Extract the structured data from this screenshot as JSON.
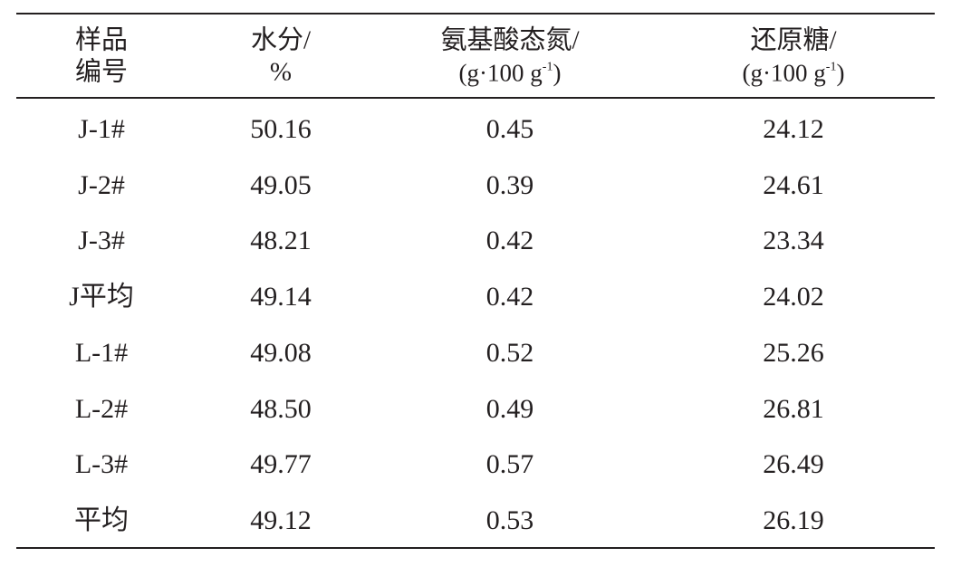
{
  "table": {
    "header": [
      {
        "lines": [
          "样品",
          "编号"
        ]
      },
      {
        "lines": [
          "水分/",
          "%"
        ]
      },
      {
        "lines": [
          "氨基酸态氮/"
        ],
        "unit": [
          "(g·100 g",
          "-1",
          ")"
        ]
      },
      {
        "lines": [
          "还原糖/"
        ],
        "unit": [
          "(g·100 g",
          "-1",
          ")"
        ]
      }
    ],
    "rows": [
      [
        "J-1#",
        "50.16",
        "0.45",
        "24.12"
      ],
      [
        "J-2#",
        "49.05",
        "0.39",
        "24.61"
      ],
      [
        "J-3#",
        "48.21",
        "0.42",
        "23.34"
      ],
      [
        "J平均",
        "49.14",
        "0.42",
        "24.02"
      ],
      [
        "L-1#",
        "49.08",
        "0.52",
        "25.26"
      ],
      [
        "L-2#",
        "48.50",
        "0.49",
        "26.81"
      ],
      [
        "L-3#",
        "49.77",
        "0.57",
        "26.49"
      ],
      [
        "平均",
        "49.12",
        "0.53",
        "26.19"
      ]
    ]
  }
}
